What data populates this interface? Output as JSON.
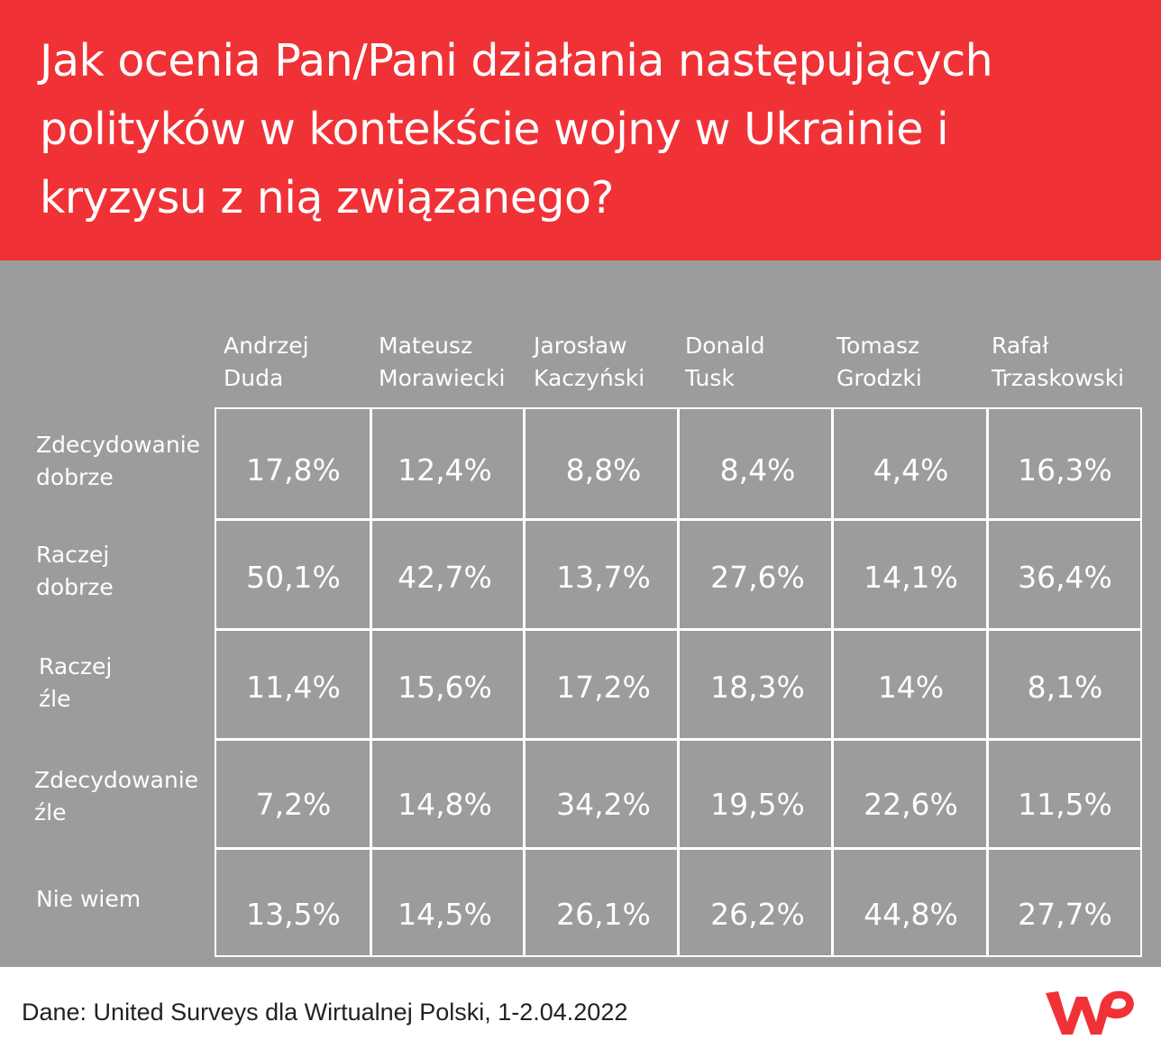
{
  "header": {
    "title": "Jak ocenia Pan/Pani działania następujących\npolityków w kontekście wojny w Ukrainie i\nkryzysu z nią związanego?"
  },
  "chart_data": {
    "type": "table",
    "columns": [
      "Andrzej\nDuda",
      "Mateusz\nMorawiecki",
      "Jarosław\nKaczyński",
      "Donald\nTusk",
      "Tomasz\nGrodzki",
      "Rafał\nTrzaskowski"
    ],
    "rows": [
      {
        "label": "Zdecydowanie\ndobrze",
        "values": [
          "17,8%",
          "12,4%",
          "8,8%",
          "8,4%",
          "4,4%",
          "16,3%"
        ]
      },
      {
        "label": "Raczej\ndobrze",
        "values": [
          "50,1%",
          "42,7%",
          "13,7%",
          "27,6%",
          "14,1%",
          "36,4%"
        ]
      },
      {
        "label": "Raczej\nźle",
        "values": [
          "11,4%",
          "15,6%",
          "17,2%",
          "18,3%",
          "14%",
          "8,1%"
        ]
      },
      {
        "label": "Zdecydowanie\nźle",
        "values": [
          "7,2%",
          "14,8%",
          "34,2%",
          "19,5%",
          "22,6%",
          "11,5%"
        ]
      },
      {
        "label": "Nie wiem",
        "values": [
          "13,5%",
          "14,5%",
          "26,1%",
          "26,2%",
          "44,8%",
          "27,7%"
        ]
      }
    ]
  },
  "footer": {
    "source": "Dane: United Surveys dla Wirtualnej Polski, 1-2.04.2022"
  },
  "logo": {
    "name": "wp-logo",
    "color": "#f03237"
  },
  "colors": {
    "header_bg": "#f03237",
    "panel_bg": "#9c9c9c",
    "text": "#ffffff"
  }
}
